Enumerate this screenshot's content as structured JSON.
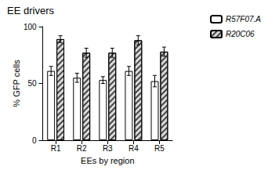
{
  "chart_data": {
    "type": "bar",
    "title": "EE drivers",
    "x_label": "EEs by region",
    "y_label": "% GFP cells",
    "categories": [
      "R1",
      "R2",
      "R3",
      "R4",
      "R5"
    ],
    "series": [
      {
        "name": "R57F07.A",
        "color": "#ffffff",
        "values": [
          61,
          55,
          53,
          61,
          52
        ],
        "errors": [
          4,
          4,
          3,
          4,
          5
        ]
      },
      {
        "name": "R20C06",
        "color": "#d9d9d9",
        "values": [
          89,
          77,
          77,
          88,
          78
        ],
        "errors": [
          3,
          4,
          4,
          4,
          4
        ]
      }
    ],
    "ylim": [
      0,
      100
    ],
    "yticks": [
      0,
      50,
      100
    ],
    "grid": false,
    "legend": "right"
  }
}
